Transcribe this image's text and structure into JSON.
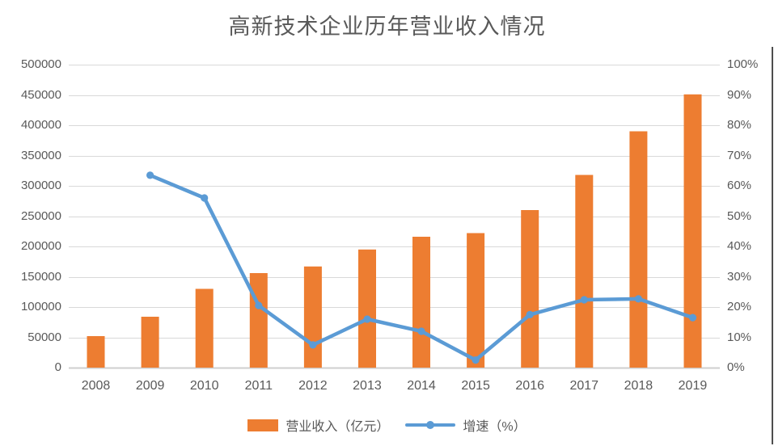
{
  "title": "高新技术企业历年营业收入情况",
  "colors": {
    "bar": "#ED7D31",
    "line": "#5B9BD5",
    "gridline": "#D9D9D9",
    "axis_line": "#CFCFCF",
    "text": "#595959"
  },
  "legend": [
    {
      "label": "营业收入（亿元）",
      "type": "bar",
      "color": "#ED7D31"
    },
    {
      "label": "增速（%）",
      "type": "line",
      "color": "#5B9BD5"
    }
  ],
  "chart_data": {
    "type": "bar",
    "subtype": "combo-bar-line-dual-axis",
    "title": "高新技术企业历年营业收入情况",
    "categories": [
      "2008",
      "2009",
      "2010",
      "2011",
      "2012",
      "2013",
      "2014",
      "2015",
      "2016",
      "2017",
      "2018",
      "2019"
    ],
    "series": [
      {
        "name": "营业收入（亿元）",
        "type": "bar",
        "axis": "left",
        "color": "#ED7D31",
        "values": [
          52000,
          84000,
          130000,
          156000,
          167000,
          195000,
          216000,
          222000,
          260000,
          318000,
          390000,
          451000
        ]
      },
      {
        "name": "增速（%）",
        "type": "line",
        "axis": "right",
        "color": "#5B9BD5",
        "values": [
          null,
          63.5,
          56,
          20.5,
          7.5,
          16,
          12,
          2.5,
          17.5,
          22.4,
          22.7,
          16.5
        ]
      }
    ],
    "left_axis": {
      "min": 0,
      "max": 500000,
      "step": 50000,
      "ticks": [
        "0",
        "50000",
        "100000",
        "150000",
        "200000",
        "250000",
        "300000",
        "350000",
        "400000",
        "450000",
        "500000"
      ]
    },
    "right_axis": {
      "min": 0,
      "max": 100,
      "step": 10,
      "ticks": [
        "0%",
        "10%",
        "20%",
        "30%",
        "40%",
        "50%",
        "60%",
        "70%",
        "80%",
        "90%",
        "100%"
      ]
    },
    "grid": true,
    "legend_position": "bottom"
  }
}
